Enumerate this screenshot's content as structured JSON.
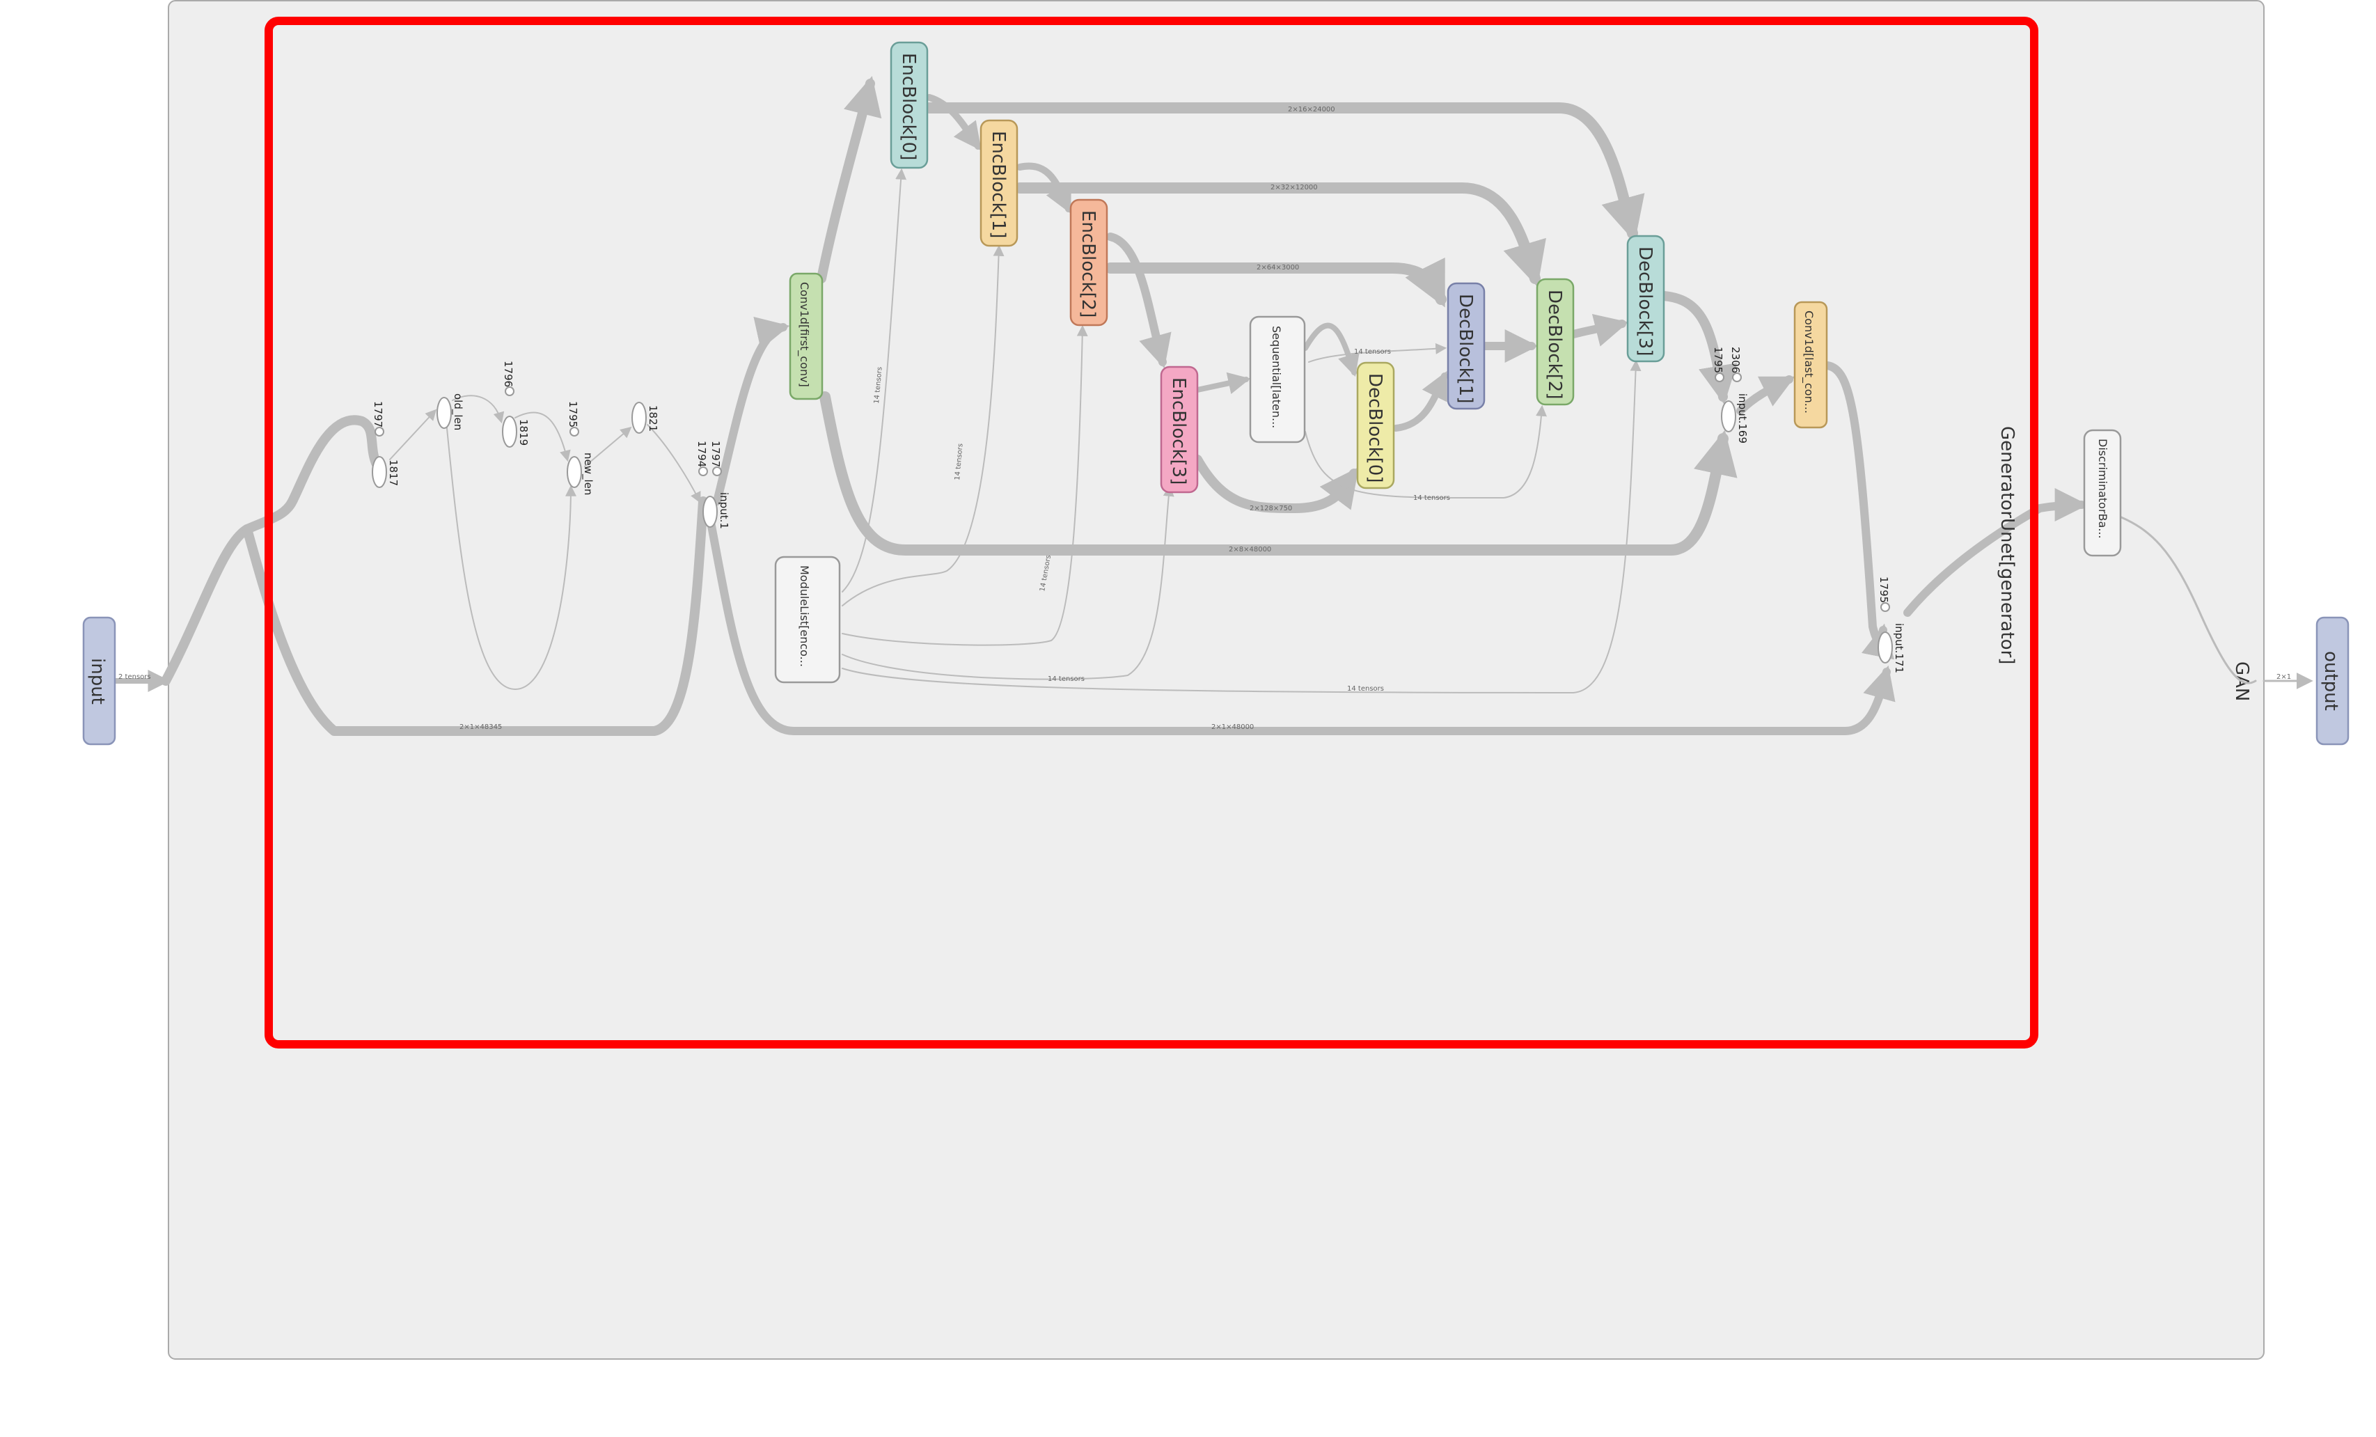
{
  "graph": {
    "outer_scope": "GAN",
    "generator_scope": "GeneratorUnet[generator]",
    "nodes": {
      "input": "input",
      "output": "output",
      "first_conv": "Conv1d[first_conv]",
      "enc0": "EncBlock[0]",
      "enc1": "EncBlock[1]",
      "enc2": "EncBlock[2]",
      "enc3": "EncBlock[3]",
      "sequential": "Sequential[laten...",
      "dec0": "DecBlock[0]",
      "dec1": "DecBlock[1]",
      "dec2": "DecBlock[2]",
      "dec3": "DecBlock[3]",
      "last_conv": "Conv1d[last_con...",
      "modulelist": "ModuleList[enco...",
      "discriminator": "DiscriminatorBa..."
    },
    "ops": {
      "c1797a": "1797",
      "o1817": "1817",
      "old_len": "old_len",
      "c1796": "1796",
      "o1819": "1819",
      "c1795a": "1795",
      "new_len": "new_len",
      "o1821": "1821",
      "c1794": "1794",
      "c1797b": "1797",
      "input1": "input.1",
      "c1795b": "1795",
      "c2306": "2306",
      "input169": "input.169",
      "c1795c": "1795",
      "input171": "input.171"
    },
    "edges": {
      "in_tensor": "2 tensors",
      "s2x1x48345": "2×1×48345",
      "s2x1x48000a": "2×1×48000",
      "s2x8x48000": "2×8×48000",
      "s2x16x24000": "2×16×24000",
      "s2x32x12000": "2×32×12000",
      "s2x64x3000": "2×64×3000",
      "s2x128x750": "2×128×750",
      "s14a": "14 tensors",
      "s14b": "14 tensors",
      "s14c": "14 tensors",
      "s14d": "14 tensors",
      "s14e": "14 tensors",
      "s14f": "14 tensors",
      "s14g": "14 tensors",
      "s2x1": "2×1"
    }
  },
  "colors": {
    "io_fill": "#c0c8e0",
    "io_stroke": "#8a94b8",
    "highlight": "#ff0000",
    "scope_fill": "#eeeeee",
    "edge": "#bbbbbb"
  }
}
